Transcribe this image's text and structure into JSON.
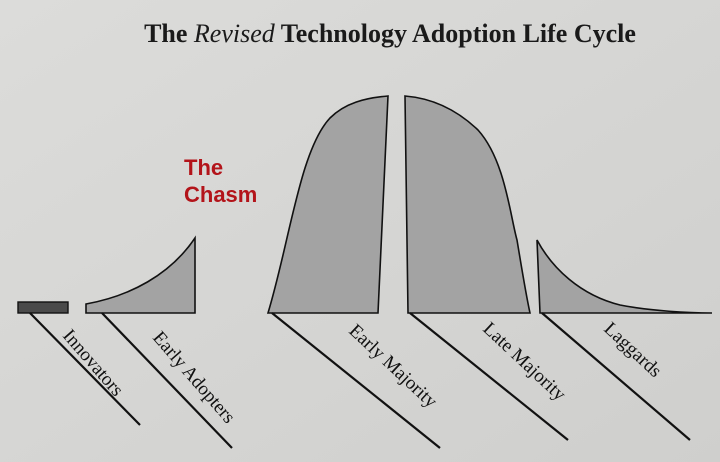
{
  "title": {
    "before": "The",
    "emphasis": "Revised",
    "after": "Technology Adoption Life Cycle"
  },
  "chasm_label": {
    "lines": [
      "The",
      "Chasm"
    ]
  },
  "segments": [
    {
      "label": "Innovators"
    },
    {
      "label": "Early Adopters"
    },
    {
      "label": "Early Majority"
    },
    {
      "label": "Late Majority"
    },
    {
      "label": "Laggards"
    }
  ]
}
